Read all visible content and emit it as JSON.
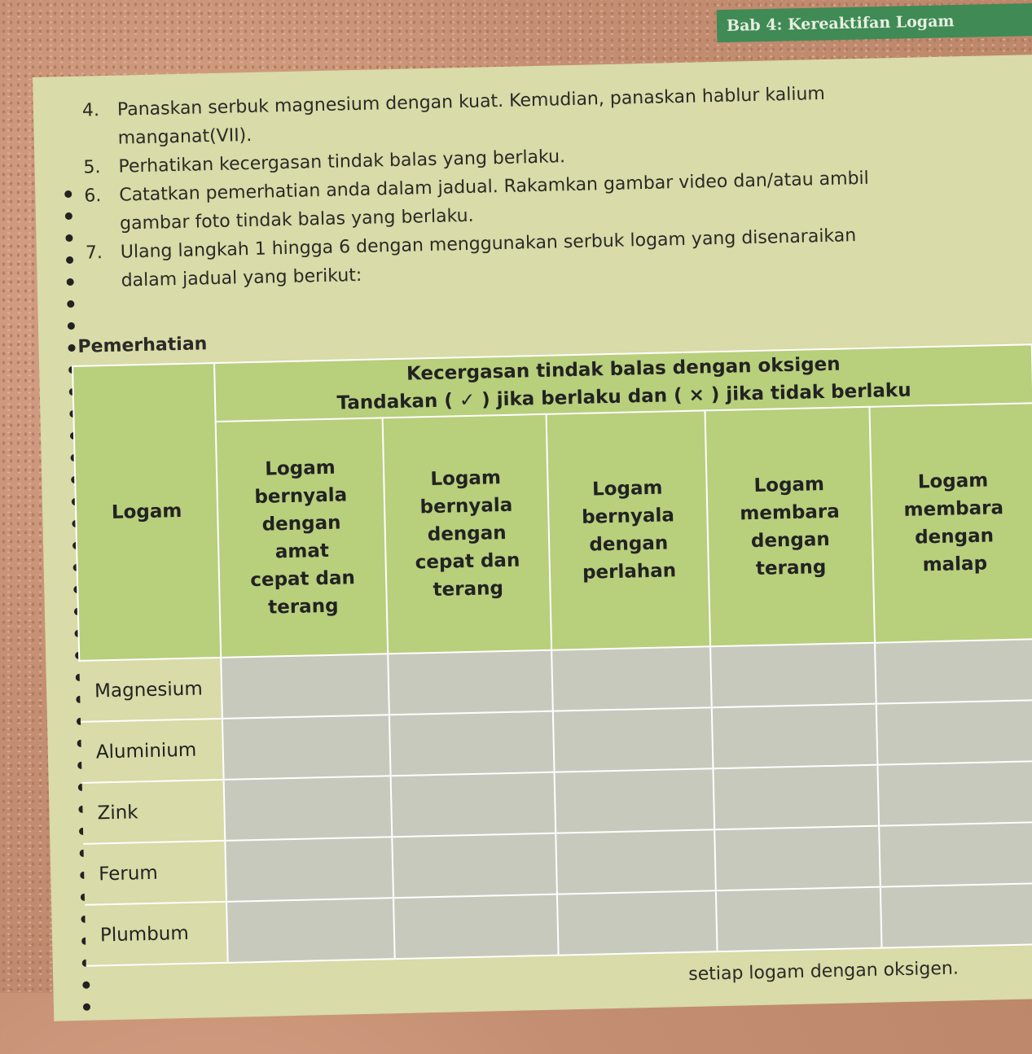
{
  "header": {
    "chapter": "Bab 4: Kereaktifan Logam"
  },
  "steps": [
    {
      "num": "4.",
      "lines": [
        "Panaskan serbuk magnesium dengan kuat. Kemudian, panaskan hablur kalium",
        "manganat(VII)."
      ]
    },
    {
      "num": "5.",
      "lines": [
        "Perhatikan kecergasan tindak balas yang berlaku."
      ]
    },
    {
      "num": "6.",
      "lines": [
        "Catatkan pemerhatian anda dalam jadual. Rakamkan gambar video dan/atau ambil",
        "gambar foto tindak balas yang berlaku."
      ]
    },
    {
      "num": "7.",
      "lines": [
        "Ulang langkah 1 hingga 6 dengan menggunakan serbuk logam yang disenaraikan",
        "dalam jadual yang berikut:"
      ]
    }
  ],
  "table": {
    "caption": "Pemerhatian",
    "col_logam": "Logam",
    "group_title": "Kecergasan tindak balas dengan oksigen",
    "group_instruction": "Tandakan ( ✓ ) jika berlaku dan ( × ) jika tidak berlaku",
    "columns": [
      "Logam bernyala dengan amat cepat dan terang",
      "Logam bernyala dengan cepat dan terang",
      "Logam bernyala dengan perlahan",
      "Logam membara dengan terang",
      "Logam membara dengan malap"
    ],
    "rows": [
      "Magnesium",
      "Aluminium",
      "Zink",
      "Ferum",
      "Plumbum"
    ]
  },
  "footer_text": "setiap logam dengan oksigen.",
  "colors": {
    "header_green": "#b8cf7c",
    "cell_gray": "#c8c9bd",
    "banner": "#3f8a55",
    "page": "#d9dba8"
  }
}
